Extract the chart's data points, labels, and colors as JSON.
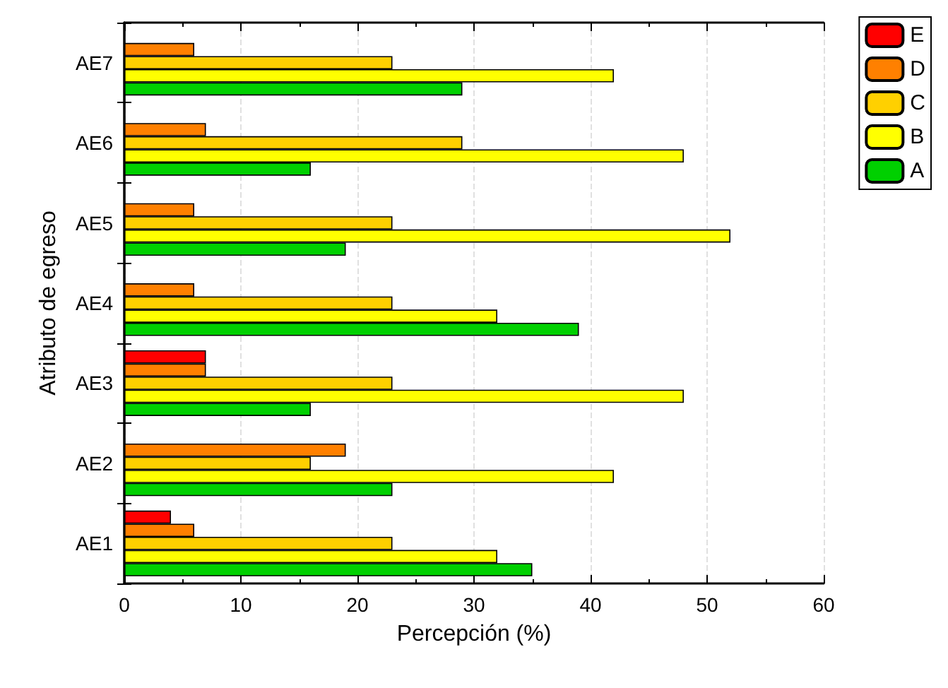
{
  "chart_data": {
    "type": "bar",
    "orientation": "horizontal",
    "xlabel": "Percepción (%)",
    "ylabel": "Atributo de egreso",
    "categories": [
      "AE7",
      "AE6",
      "AE5",
      "AE4",
      "AE3",
      "AE2",
      "AE1"
    ],
    "series": [
      {
        "name": "E",
        "color": "#ff0000",
        "values": [
          null,
          null,
          null,
          null,
          7,
          null,
          4
        ]
      },
      {
        "name": "D",
        "color": "#ff8000",
        "values": [
          6,
          7,
          6,
          6,
          7,
          19,
          6
        ]
      },
      {
        "name": "C",
        "color": "#ffd000",
        "values": [
          23,
          29,
          23,
          23,
          23,
          16,
          23
        ]
      },
      {
        "name": "B",
        "color": "#ffff00",
        "values": [
          42,
          48,
          52,
          32,
          48,
          42,
          32
        ]
      },
      {
        "name": "A",
        "color": "#00d000",
        "values": [
          29,
          16,
          19,
          39,
          16,
          23,
          35
        ]
      }
    ],
    "xlim": [
      0,
      60
    ],
    "xticks": [
      0,
      10,
      20,
      30,
      40,
      50,
      60
    ],
    "grid": "x",
    "legend": "top right"
  }
}
